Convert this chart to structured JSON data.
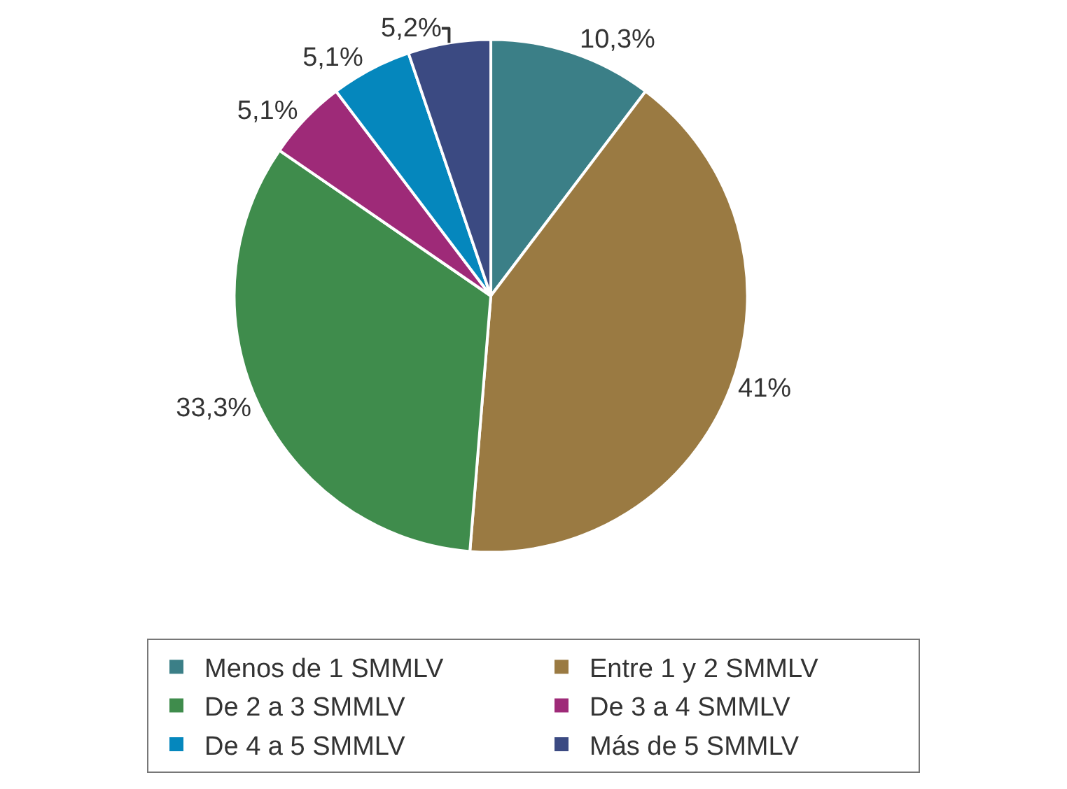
{
  "chart_data": {
    "type": "pie",
    "categories": [
      "Menos de 1 SMMLV",
      "Entre 1 y 2 SMMLV",
      "De 2 a 3 SMMLV",
      "De 3 a 4 SMMLV",
      "De 4 a 5 SMMLV",
      "Más de 5 SMMLV"
    ],
    "values": [
      10.3,
      41,
      33.3,
      5.1,
      5.1,
      5.2
    ],
    "value_labels": [
      "10,3%",
      "41%",
      "33,3%",
      "5,1%",
      "5,1%",
      "5,2%"
    ],
    "colors": [
      "#3b7f87",
      "#9a7a42",
      "#3f8c4c",
      "#9e2a78",
      "#0587bd",
      "#3b4a82"
    ],
    "legend": "bottom"
  }
}
